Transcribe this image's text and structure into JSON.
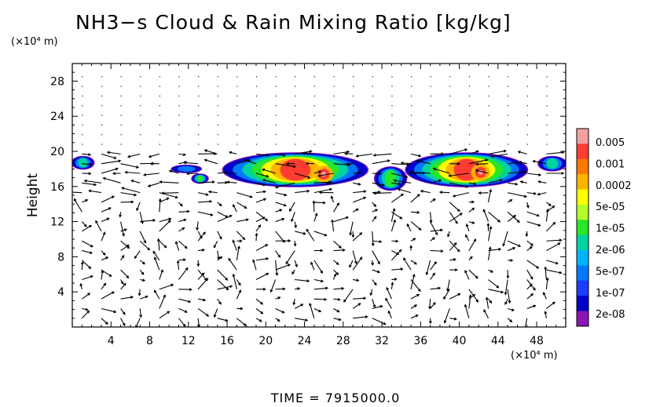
{
  "chart_data": {
    "type": "heatmap",
    "title": "NH3−s Cloud & Rain Mixing Ratio [kg/kg]",
    "ylabel": "Height",
    "y_unit": "(×10⁴ m)",
    "x_unit": "(×10⁴ m)",
    "xlim": [
      0,
      51
    ],
    "ylim": [
      0,
      30
    ],
    "x_ticks": [
      4,
      8,
      12,
      16,
      20,
      24,
      28,
      32,
      36,
      40,
      44,
      48
    ],
    "y_ticks": [
      4,
      8,
      12,
      16,
      20,
      24,
      28
    ],
    "colorbar": {
      "labels": [
        "0.005",
        "0.001",
        "0.0002",
        "5e-05",
        "1e-05",
        "2e-06",
        "5e-07",
        "1e-07",
        "2e-08"
      ],
      "colors": [
        "#f4a0a0",
        "#ff3c32",
        "#ff7800",
        "#ffb400",
        "#ffff00",
        "#b4ff28",
        "#28e628",
        "#00d2a0",
        "#00b4ff",
        "#0078ff",
        "#1e3cff",
        "#0000c8",
        "#8c14b4"
      ]
    },
    "cloud_regions": [
      {
        "x": [
          0,
          2.2
        ],
        "y": [
          18.0,
          19.4
        ],
        "peak": "5e-07"
      },
      {
        "x": [
          10.3,
          13.3
        ],
        "y": [
          17.6,
          18.4
        ],
        "peak": "1e-07"
      },
      {
        "x": [
          12.4,
          14.0
        ],
        "y": [
          16.4,
          17.4
        ],
        "peak": "1e-05"
      },
      {
        "x": [
          15.6,
          30.5
        ],
        "y": [
          16.0,
          19.8
        ],
        "peak": "0.001"
      },
      {
        "x": [
          31.3,
          34.5
        ],
        "y": [
          15.6,
          18.2
        ],
        "peak": "1e-05"
      },
      {
        "x": [
          34.5,
          47.0
        ],
        "y": [
          16.0,
          19.8
        ],
        "peak": "0.001"
      },
      {
        "x": [
          48.2,
          51.0
        ],
        "y": [
          17.8,
          19.4
        ],
        "peak": "5e-07"
      }
    ],
    "time_label": "TIME  =  7915000.0"
  }
}
